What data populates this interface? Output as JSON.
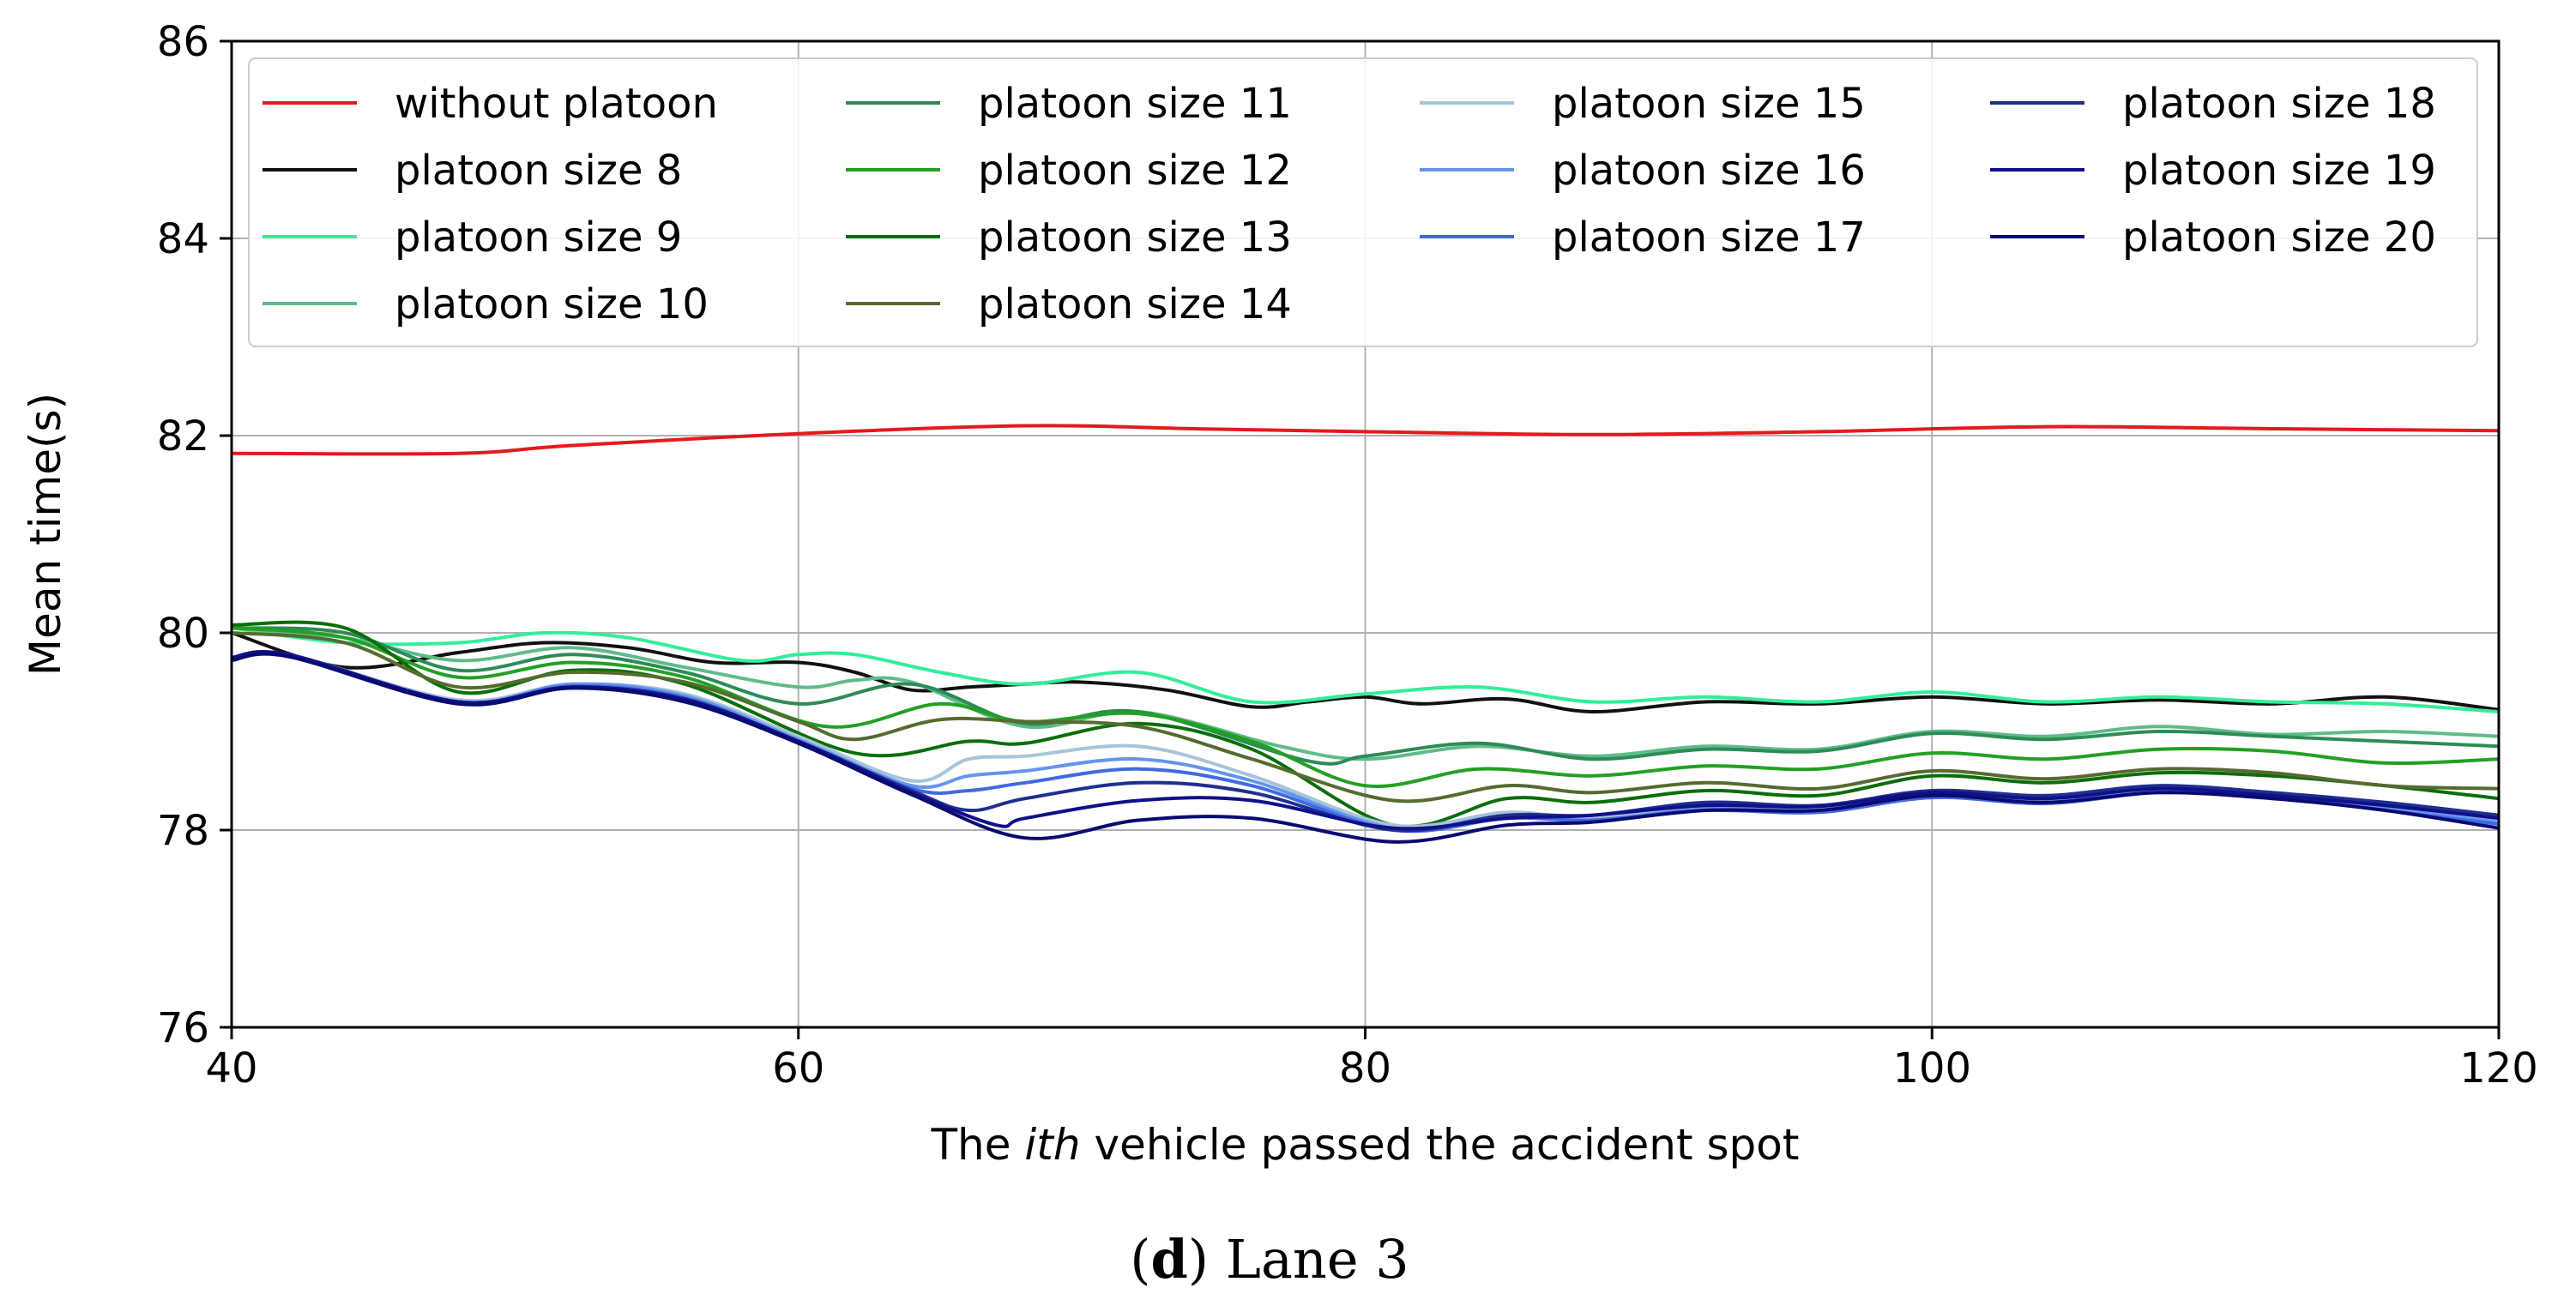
{
  "chart_data": {
    "type": "line",
    "xlabel_prefix": "The ",
    "xlabel_italic": "ith",
    "xlabel_suffix": " vehicle passed the accident spot",
    "ylabel": "Mean time(s)",
    "xlim": [
      40,
      120
    ],
    "ylim": [
      76,
      86
    ],
    "xticks": [
      "40",
      "60",
      "80",
      "100",
      "120"
    ],
    "yticks": [
      "76",
      "78",
      "80",
      "82",
      "84",
      "86"
    ],
    "grid": true,
    "legend_position": "top",
    "series": [
      {
        "name": "without platoon",
        "color": "#e41a1c",
        "points": [
          [
            40,
            81.82
          ],
          [
            48,
            81.82
          ],
          [
            52,
            81.9
          ],
          [
            60,
            82.02
          ],
          [
            68,
            82.1
          ],
          [
            74,
            82.07
          ],
          [
            80,
            82.04
          ],
          [
            88,
            82.01
          ],
          [
            96,
            82.04
          ],
          [
            104,
            82.09
          ],
          [
            112,
            82.07
          ],
          [
            120,
            82.05
          ]
        ]
      },
      {
        "name": "platoon size 8",
        "color": "#111111",
        "points": [
          [
            40,
            80.0
          ],
          [
            44,
            79.65
          ],
          [
            48,
            79.8
          ],
          [
            51,
            79.9
          ],
          [
            54,
            79.85
          ],
          [
            57,
            79.7
          ],
          [
            60,
            79.7
          ],
          [
            62,
            79.6
          ],
          [
            64,
            79.42
          ],
          [
            66,
            79.45
          ],
          [
            68,
            79.48
          ],
          [
            70,
            79.5
          ],
          [
            73,
            79.42
          ],
          [
            76,
            79.25
          ],
          [
            78,
            79.3
          ],
          [
            80,
            79.35
          ],
          [
            82,
            79.28
          ],
          [
            85,
            79.33
          ],
          [
            88,
            79.2
          ],
          [
            92,
            79.3
          ],
          [
            96,
            79.28
          ],
          [
            100,
            79.35
          ],
          [
            104,
            79.28
          ],
          [
            108,
            79.32
          ],
          [
            112,
            79.28
          ],
          [
            116,
            79.35
          ],
          [
            120,
            79.22
          ]
        ]
      },
      {
        "name": "platoon size 9",
        "color": "#33ee99",
        "points": [
          [
            40,
            80.05
          ],
          [
            44,
            79.9
          ],
          [
            48,
            79.9
          ],
          [
            51,
            80.0
          ],
          [
            54,
            79.95
          ],
          [
            58,
            79.72
          ],
          [
            60,
            79.78
          ],
          [
            62,
            79.78
          ],
          [
            65,
            79.6
          ],
          [
            68,
            79.48
          ],
          [
            72,
            79.6
          ],
          [
            76,
            79.3
          ],
          [
            80,
            79.38
          ],
          [
            84,
            79.45
          ],
          [
            88,
            79.3
          ],
          [
            92,
            79.35
          ],
          [
            96,
            79.3
          ],
          [
            100,
            79.4
          ],
          [
            104,
            79.3
          ],
          [
            108,
            79.35
          ],
          [
            112,
            79.3
          ],
          [
            116,
            79.28
          ],
          [
            120,
            79.2
          ]
        ]
      },
      {
        "name": "platoon size 10",
        "color": "#5fbb8a",
        "points": [
          [
            40,
            80.05
          ],
          [
            44,
            79.95
          ],
          [
            48,
            79.72
          ],
          [
            52,
            79.85
          ],
          [
            56,
            79.65
          ],
          [
            60,
            79.45
          ],
          [
            62,
            79.52
          ],
          [
            64,
            79.5
          ],
          [
            68,
            79.05
          ],
          [
            72,
            79.2
          ],
          [
            77,
            78.85
          ],
          [
            80,
            78.72
          ],
          [
            84,
            78.85
          ],
          [
            88,
            78.75
          ],
          [
            92,
            78.85
          ],
          [
            96,
            78.82
          ],
          [
            100,
            79.0
          ],
          [
            104,
            78.95
          ],
          [
            108,
            79.05
          ],
          [
            112,
            78.97
          ],
          [
            116,
            79.0
          ],
          [
            120,
            78.95
          ]
        ]
      },
      {
        "name": "platoon size 11",
        "color": "#2e8b57",
        "points": [
          [
            40,
            80.05
          ],
          [
            44,
            80.0
          ],
          [
            48,
            79.62
          ],
          [
            52,
            79.78
          ],
          [
            56,
            79.6
          ],
          [
            60,
            79.28
          ],
          [
            64,
            79.48
          ],
          [
            68,
            79.08
          ],
          [
            72,
            79.2
          ],
          [
            78,
            78.7
          ],
          [
            80,
            78.75
          ],
          [
            84,
            78.88
          ],
          [
            88,
            78.72
          ],
          [
            92,
            78.82
          ],
          [
            96,
            78.8
          ],
          [
            100,
            78.98
          ],
          [
            104,
            78.92
          ],
          [
            108,
            79.0
          ],
          [
            112,
            78.95
          ],
          [
            116,
            78.9
          ],
          [
            120,
            78.85
          ]
        ]
      },
      {
        "name": "platoon size 12",
        "color": "#23a023",
        "points": [
          [
            40,
            80.05
          ],
          [
            44,
            79.95
          ],
          [
            48,
            79.55
          ],
          [
            52,
            79.7
          ],
          [
            56,
            79.55
          ],
          [
            61,
            79.05
          ],
          [
            65,
            79.28
          ],
          [
            68,
            79.1
          ],
          [
            72,
            79.18
          ],
          [
            76,
            78.9
          ],
          [
            80,
            78.45
          ],
          [
            84,
            78.62
          ],
          [
            88,
            78.55
          ],
          [
            92,
            78.65
          ],
          [
            96,
            78.62
          ],
          [
            100,
            78.78
          ],
          [
            104,
            78.72
          ],
          [
            108,
            78.82
          ],
          [
            112,
            78.8
          ],
          [
            116,
            78.68
          ],
          [
            120,
            78.72
          ]
        ]
      },
      {
        "name": "platoon size 13",
        "color": "#0a6e0a",
        "points": [
          [
            40,
            80.08
          ],
          [
            44,
            80.05
          ],
          [
            48,
            79.4
          ],
          [
            52,
            79.62
          ],
          [
            56,
            79.48
          ],
          [
            62,
            78.78
          ],
          [
            66,
            78.9
          ],
          [
            68,
            78.88
          ],
          [
            72,
            79.08
          ],
          [
            76,
            78.82
          ],
          [
            81,
            78.05
          ],
          [
            85,
            78.32
          ],
          [
            88,
            78.28
          ],
          [
            92,
            78.4
          ],
          [
            96,
            78.35
          ],
          [
            100,
            78.55
          ],
          [
            104,
            78.48
          ],
          [
            108,
            78.58
          ],
          [
            112,
            78.55
          ],
          [
            116,
            78.45
          ],
          [
            120,
            78.32
          ]
        ]
      },
      {
        "name": "platoon size 14",
        "color": "#556b2f",
        "points": [
          [
            40,
            80.0
          ],
          [
            44,
            79.9
          ],
          [
            48,
            79.45
          ],
          [
            52,
            79.6
          ],
          [
            56,
            79.5
          ],
          [
            60,
            79.1
          ],
          [
            62,
            78.92
          ],
          [
            65,
            79.12
          ],
          [
            68,
            79.1
          ],
          [
            72,
            79.05
          ],
          [
            76,
            78.72
          ],
          [
            81,
            78.3
          ],
          [
            85,
            78.45
          ],
          [
            88,
            78.38
          ],
          [
            92,
            78.48
          ],
          [
            96,
            78.42
          ],
          [
            100,
            78.6
          ],
          [
            104,
            78.52
          ],
          [
            108,
            78.62
          ],
          [
            112,
            78.58
          ],
          [
            116,
            78.45
          ],
          [
            120,
            78.42
          ]
        ]
      },
      {
        "name": "platoon size 15",
        "color": "#a8c4d8",
        "points": [
          [
            40,
            79.75
          ],
          [
            42,
            79.78
          ],
          [
            48,
            79.32
          ],
          [
            52,
            79.48
          ],
          [
            56,
            79.38
          ],
          [
            60,
            78.95
          ],
          [
            64,
            78.5
          ],
          [
            66,
            78.72
          ],
          [
            68,
            78.75
          ],
          [
            72,
            78.85
          ],
          [
            76,
            78.55
          ],
          [
            81,
            78.05
          ],
          [
            85,
            78.18
          ],
          [
            88,
            78.12
          ],
          [
            92,
            78.25
          ],
          [
            96,
            78.22
          ],
          [
            100,
            78.38
          ],
          [
            104,
            78.3
          ],
          [
            108,
            78.42
          ],
          [
            112,
            78.38
          ],
          [
            116,
            78.25
          ],
          [
            120,
            78.1
          ]
        ]
      },
      {
        "name": "platoon size 16",
        "color": "#6495ed",
        "points": [
          [
            40,
            79.75
          ],
          [
            42,
            79.78
          ],
          [
            48,
            79.3
          ],
          [
            52,
            79.48
          ],
          [
            56,
            79.36
          ],
          [
            60,
            78.92
          ],
          [
            64,
            78.45
          ],
          [
            66,
            78.55
          ],
          [
            68,
            78.6
          ],
          [
            72,
            78.72
          ],
          [
            76,
            78.5
          ],
          [
            81,
            78.02
          ],
          [
            85,
            78.15
          ],
          [
            88,
            78.1
          ],
          [
            92,
            78.22
          ],
          [
            96,
            78.2
          ],
          [
            100,
            78.35
          ],
          [
            104,
            78.28
          ],
          [
            108,
            78.4
          ],
          [
            112,
            78.35
          ],
          [
            116,
            78.22
          ],
          [
            120,
            78.08
          ]
        ]
      },
      {
        "name": "platoon size 17",
        "color": "#4169e1",
        "points": [
          [
            40,
            79.75
          ],
          [
            42,
            79.78
          ],
          [
            48,
            79.3
          ],
          [
            52,
            79.46
          ],
          [
            56,
            79.34
          ],
          [
            60,
            78.9
          ],
          [
            64,
            78.42
          ],
          [
            66,
            78.4
          ],
          [
            68,
            78.48
          ],
          [
            72,
            78.62
          ],
          [
            76,
            78.45
          ],
          [
            81,
            78.0
          ],
          [
            85,
            78.12
          ],
          [
            88,
            78.1
          ],
          [
            92,
            78.2
          ],
          [
            96,
            78.18
          ],
          [
            100,
            78.33
          ],
          [
            104,
            78.27
          ],
          [
            108,
            78.38
          ],
          [
            112,
            78.33
          ],
          [
            116,
            78.2
          ],
          [
            120,
            78.06
          ]
        ]
      },
      {
        "name": "platoon size 18",
        "color": "#1f2f8f",
        "points": [
          [
            40,
            79.75
          ],
          [
            42,
            79.78
          ],
          [
            48,
            79.3
          ],
          [
            52,
            79.45
          ],
          [
            56,
            79.33
          ],
          [
            60,
            78.9
          ],
          [
            64,
            78.4
          ],
          [
            66,
            78.2
          ],
          [
            68,
            78.32
          ],
          [
            72,
            78.48
          ],
          [
            76,
            78.38
          ],
          [
            81,
            78.0
          ],
          [
            85,
            78.15
          ],
          [
            88,
            78.15
          ],
          [
            92,
            78.28
          ],
          [
            96,
            78.25
          ],
          [
            100,
            78.4
          ],
          [
            104,
            78.35
          ],
          [
            108,
            78.45
          ],
          [
            112,
            78.38
          ],
          [
            116,
            78.28
          ],
          [
            120,
            78.15
          ]
        ]
      },
      {
        "name": "platoon size 19",
        "color": "#10108a",
        "points": [
          [
            40,
            79.75
          ],
          [
            42,
            79.78
          ],
          [
            48,
            79.3
          ],
          [
            52,
            79.45
          ],
          [
            56,
            79.32
          ],
          [
            60,
            78.9
          ],
          [
            64,
            78.38
          ],
          [
            67,
            78.05
          ],
          [
            68,
            78.12
          ],
          [
            72,
            78.3
          ],
          [
            76,
            78.3
          ],
          [
            81,
            78.02
          ],
          [
            85,
            78.12
          ],
          [
            88,
            78.15
          ],
          [
            92,
            78.25
          ],
          [
            96,
            78.24
          ],
          [
            100,
            78.38
          ],
          [
            104,
            78.32
          ],
          [
            108,
            78.42
          ],
          [
            112,
            78.35
          ],
          [
            116,
            78.25
          ],
          [
            120,
            78.12
          ]
        ]
      },
      {
        "name": "platoon size 20",
        "color": "#0a0a70",
        "points": [
          [
            40,
            79.72
          ],
          [
            42,
            79.76
          ],
          [
            48,
            79.28
          ],
          [
            52,
            79.44
          ],
          [
            56,
            79.3
          ],
          [
            60,
            78.88
          ],
          [
            64,
            78.36
          ],
          [
            68,
            77.92
          ],
          [
            72,
            78.1
          ],
          [
            76,
            78.12
          ],
          [
            81,
            77.88
          ],
          [
            85,
            78.05
          ],
          [
            88,
            78.08
          ],
          [
            92,
            78.2
          ],
          [
            96,
            78.2
          ],
          [
            100,
            78.35
          ],
          [
            104,
            78.28
          ],
          [
            108,
            78.38
          ],
          [
            112,
            78.32
          ],
          [
            116,
            78.2
          ],
          [
            120,
            78.02
          ]
        ]
      }
    ]
  },
  "caption": {
    "letter": "d",
    "open_paren": "(",
    "close_paren": ")",
    "text": " Lane 3"
  }
}
